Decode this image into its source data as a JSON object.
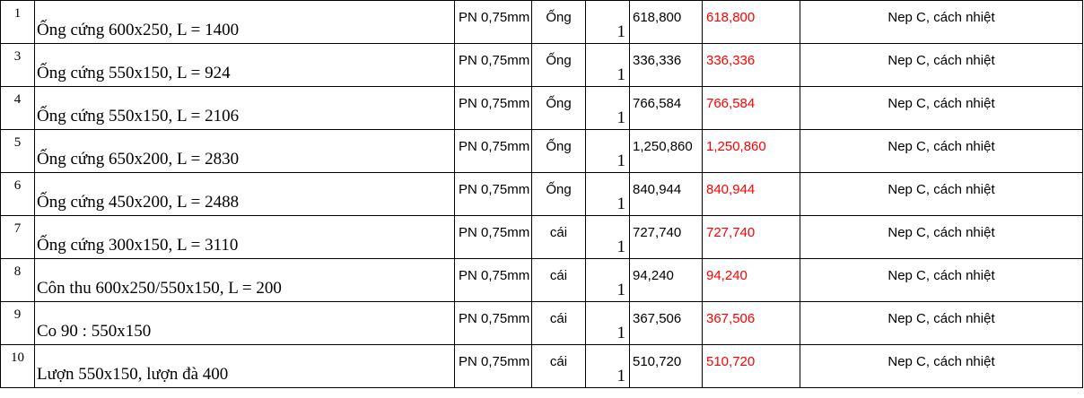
{
  "rows": [
    {
      "stt": "1",
      "name": "Ống cứng 600x250, L = 1400",
      "material": "PN 0,75mm",
      "unit": "Ống",
      "qty": "1",
      "price": "618,800",
      "total": "618,800",
      "note": "Nep C, cách nhiệt"
    },
    {
      "stt": "3",
      "name": "Ống cứng 550x150, L = 924",
      "material": "PN 0,75mm",
      "unit": "Ống",
      "qty": "1",
      "price": "336,336",
      "total": "336,336",
      "note": "Nep C, cách nhiệt"
    },
    {
      "stt": "4",
      "name": "Ống cứng 550x150, L = 2106",
      "material": "PN 0,75mm",
      "unit": "Ống",
      "qty": "1",
      "price": "766,584",
      "total": "766,584",
      "note": "Nep C, cách nhiệt"
    },
    {
      "stt": "5",
      "name": "Ống cứng 650x200, L = 2830",
      "material": "PN 0,75mm",
      "unit": "Ống",
      "qty": "1",
      "price": "1,250,860",
      "total": "1,250,860",
      "note": "Nep C, cách nhiệt"
    },
    {
      "stt": "6",
      "name": "Ống cứng 450x200, L = 2488",
      "material": "PN 0,75mm",
      "unit": "Ống",
      "qty": "1",
      "price": "840,944",
      "total": "840,944",
      "note": "Nep C, cách nhiệt"
    },
    {
      "stt": "7",
      "name": "Ống cứng 300x150, L = 3110",
      "material": "PN 0,75mm",
      "unit": "cái",
      "qty": "1",
      "price": "727,740",
      "total": "727,740",
      "note": "Nep C, cách nhiệt"
    },
    {
      "stt": "8",
      "name": "Côn thu 600x250/550x150, L = 200",
      "material": "PN 0,75mm",
      "unit": "cái",
      "qty": "1",
      "price": "94,240",
      "total": "94,240",
      "note": "Nep C, cách nhiệt"
    },
    {
      "stt": "9",
      "name": "Co 90 : 550x150",
      "material": "PN 0,75mm",
      "unit": "cái",
      "qty": "1",
      "price": "367,506",
      "total": "367,506",
      "note": "Nep C, cách nhiệt"
    },
    {
      "stt": "10",
      "name": "Lượn 550x150, lượn đà 400",
      "material": "PN 0,75mm",
      "unit": "cái",
      "qty": "1",
      "price": "510,720",
      "total": "510,720",
      "note": "Nep C, cách nhiệt"
    }
  ],
  "colors": {
    "grid": "#000000",
    "total_text": "#ff0000",
    "text": "#000000",
    "background": "#ffffff"
  }
}
